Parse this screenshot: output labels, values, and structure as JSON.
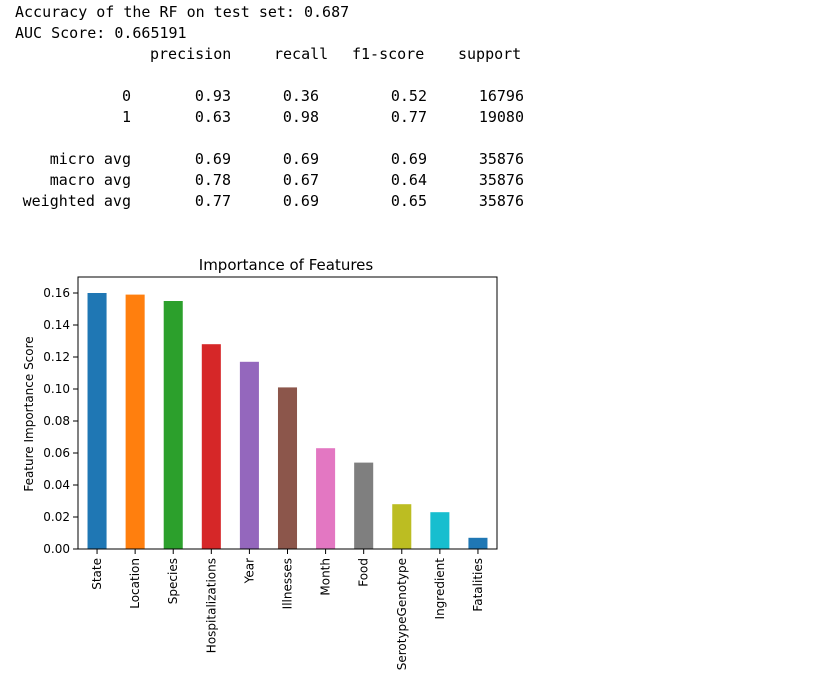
{
  "output": {
    "accuracy_line": "Accuracy of the RF on test set: 0.687",
    "auc_line": "AUC Score: 0.665191"
  },
  "report": {
    "headers": [
      "precision",
      "recall",
      "f1-score",
      "support"
    ],
    "rows": [
      {
        "label": "0",
        "values": [
          "0.93",
          "0.36",
          "0.52",
          "16796"
        ]
      },
      {
        "label": "1",
        "values": [
          "0.63",
          "0.98",
          "0.77",
          "19080"
        ]
      },
      {
        "label": "",
        "values": [
          "",
          "",
          "",
          ""
        ]
      },
      {
        "label": "micro avg",
        "values": [
          "0.69",
          "0.69",
          "0.69",
          "35876"
        ]
      },
      {
        "label": "macro avg",
        "values": [
          "0.78",
          "0.67",
          "0.64",
          "35876"
        ]
      },
      {
        "label": "weighted avg",
        "values": [
          "0.77",
          "0.69",
          "0.65",
          "35876"
        ]
      }
    ]
  },
  "chart_data": {
    "type": "bar",
    "title": "Importance of Features",
    "xlabel": "",
    "ylabel": "Feature Importance Score",
    "ylim": [
      0,
      0.17
    ],
    "yticks": [
      "0.00",
      "0.02",
      "0.04",
      "0.06",
      "0.08",
      "0.10",
      "0.12",
      "0.14",
      "0.16"
    ],
    "grid": false,
    "categories": [
      "State",
      "Location",
      "Species",
      "Hospitalizations",
      "Year",
      "Illnesses",
      "Month",
      "Food",
      "SerotypeGenotype",
      "Ingredient",
      "Fatalities"
    ],
    "values": [
      0.16,
      0.159,
      0.155,
      0.128,
      0.117,
      0.101,
      0.063,
      0.054,
      0.028,
      0.023,
      0.007
    ],
    "colors": [
      "#1f77b4",
      "#ff7f0e",
      "#2ca02c",
      "#d62728",
      "#9467bd",
      "#8c564b",
      "#e377c2",
      "#7f7f7f",
      "#bcbd22",
      "#17becf",
      "#1f77b4"
    ]
  }
}
